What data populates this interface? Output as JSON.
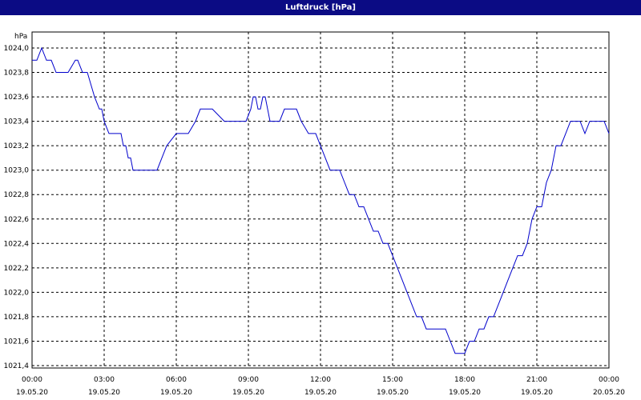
{
  "window": {
    "title": "Luftdruck [hPa]"
  },
  "colors": {
    "titlebar": "#0b0b84",
    "line": "#0000cc",
    "grid": "#000000"
  },
  "chart_data": {
    "type": "line",
    "title": "Luftdruck [hPa]",
    "ylabel": "hPa",
    "xlabel": "",
    "unit": "hPa",
    "xlim": [
      "19.05.20 00:00",
      "20.05.20 00:00"
    ],
    "ylim": [
      1021.4,
      1024.0
    ],
    "grid": true,
    "y_ticks": [
      {
        "value": 1024.0,
        "label": "1024,0"
      },
      {
        "value": 1023.8,
        "label": "1023,8"
      },
      {
        "value": 1023.6,
        "label": "1023,6"
      },
      {
        "value": 1023.4,
        "label": "1023,4"
      },
      {
        "value": 1023.2,
        "label": "1023,2"
      },
      {
        "value": 1023.0,
        "label": "1023,0"
      },
      {
        "value": 1022.8,
        "label": "1022,8"
      },
      {
        "value": 1022.6,
        "label": "1022,6"
      },
      {
        "value": 1022.4,
        "label": "1022,4"
      },
      {
        "value": 1022.2,
        "label": "1022,2"
      },
      {
        "value": 1022.0,
        "label": "1022,0"
      },
      {
        "value": 1021.8,
        "label": "1021,8"
      },
      {
        "value": 1021.6,
        "label": "1021,6"
      },
      {
        "value": 1021.4,
        "label": "1021,4"
      }
    ],
    "x_ticks": [
      {
        "hours": 0,
        "time": "00:00",
        "date": "19.05.20"
      },
      {
        "hours": 3,
        "time": "03:00",
        "date": "19.05.20"
      },
      {
        "hours": 6,
        "time": "06:00",
        "date": "19.05.20"
      },
      {
        "hours": 9,
        "time": "09:00",
        "date": "19.05.20"
      },
      {
        "hours": 12,
        "time": "12:00",
        "date": "19.05.20"
      },
      {
        "hours": 15,
        "time": "15:00",
        "date": "19.05.20"
      },
      {
        "hours": 18,
        "time": "18:00",
        "date": "19.05.20"
      },
      {
        "hours": 21,
        "time": "21:00",
        "date": "19.05.20"
      },
      {
        "hours": 24,
        "time": "00:00",
        "date": "20.05.20"
      }
    ],
    "series": [
      {
        "x": [
          0,
          0.2,
          0.4,
          0.6,
          0.8,
          1.0,
          1.4,
          1.5,
          1.8,
          1.9,
          2.1,
          2.3,
          2.6,
          2.8,
          2.9,
          3.0,
          3.2,
          3.6,
          3.7,
          3.8,
          3.9,
          4.0,
          4.1,
          4.2,
          4.5,
          4.8,
          5.2,
          5.4,
          5.6,
          6.0,
          6.2,
          6.5,
          6.8,
          7.0,
          7.2,
          7.5,
          8.0,
          8.5,
          8.9,
          9.1,
          9.2,
          9.3,
          9.4,
          9.5,
          9.6,
          9.7,
          9.8,
          9.9,
          10.0,
          10.3,
          10.5,
          10.8,
          11.0,
          11.2,
          11.5,
          11.8,
          12.0,
          12.2,
          12.4,
          12.6,
          12.8,
          13.0,
          13.2,
          13.4,
          13.6,
          13.8,
          14.0,
          14.2,
          14.4,
          14.6,
          14.8,
          15.0,
          15.2,
          15.4,
          15.6,
          15.8,
          16.0,
          16.2,
          16.4,
          16.6,
          16.8,
          17.0,
          17.2,
          17.4,
          17.6,
          17.8,
          18.0,
          18.2,
          18.4,
          18.6,
          18.8,
          19.0,
          19.2,
          19.4,
          19.6,
          19.8,
          20.0,
          20.2,
          20.4,
          20.6,
          20.8,
          21.0,
          21.2,
          21.4,
          21.6,
          21.8,
          22.0,
          22.2,
          22.4,
          22.6,
          22.8,
          23.0,
          23.2,
          23.4,
          23.6,
          23.8,
          24.0
        ],
        "y": [
          1023.9,
          1023.9,
          1024.0,
          1023.9,
          1023.9,
          1023.8,
          1023.8,
          1023.8,
          1023.9,
          1023.9,
          1023.8,
          1023.8,
          1023.6,
          1023.5,
          1023.5,
          1023.4,
          1023.3,
          1023.3,
          1023.3,
          1023.2,
          1023.2,
          1023.1,
          1023.1,
          1023.0,
          1023.0,
          1023.0,
          1023.0,
          1023.1,
          1023.2,
          1023.3,
          1023.3,
          1023.3,
          1023.4,
          1023.5,
          1023.5,
          1023.5,
          1023.4,
          1023.4,
          1023.4,
          1023.5,
          1023.6,
          1023.6,
          1023.5,
          1023.5,
          1023.6,
          1023.6,
          1023.5,
          1023.4,
          1023.4,
          1023.4,
          1023.5,
          1023.5,
          1023.5,
          1023.4,
          1023.3,
          1023.3,
          1023.2,
          1023.1,
          1023.0,
          1023.0,
          1023.0,
          1022.9,
          1022.8,
          1022.8,
          1022.7,
          1022.7,
          1022.6,
          1022.5,
          1022.5,
          1022.4,
          1022.4,
          1022.3,
          1022.2,
          1022.1,
          1022.0,
          1021.9,
          1021.8,
          1021.8,
          1021.7,
          1021.7,
          1021.7,
          1021.7,
          1021.7,
          1021.6,
          1021.5,
          1021.5,
          1021.5,
          1021.6,
          1021.6,
          1021.7,
          1021.7,
          1021.8,
          1021.8,
          1021.9,
          1022.0,
          1022.1,
          1022.2,
          1022.3,
          1022.3,
          1022.4,
          1022.6,
          1022.7,
          1022.7,
          1022.9,
          1023.0,
          1023.2,
          1023.2,
          1023.3,
          1023.4,
          1023.4,
          1023.4,
          1023.3,
          1023.4,
          1023.4,
          1023.4,
          1023.4,
          1023.3
        ]
      }
    ]
  }
}
